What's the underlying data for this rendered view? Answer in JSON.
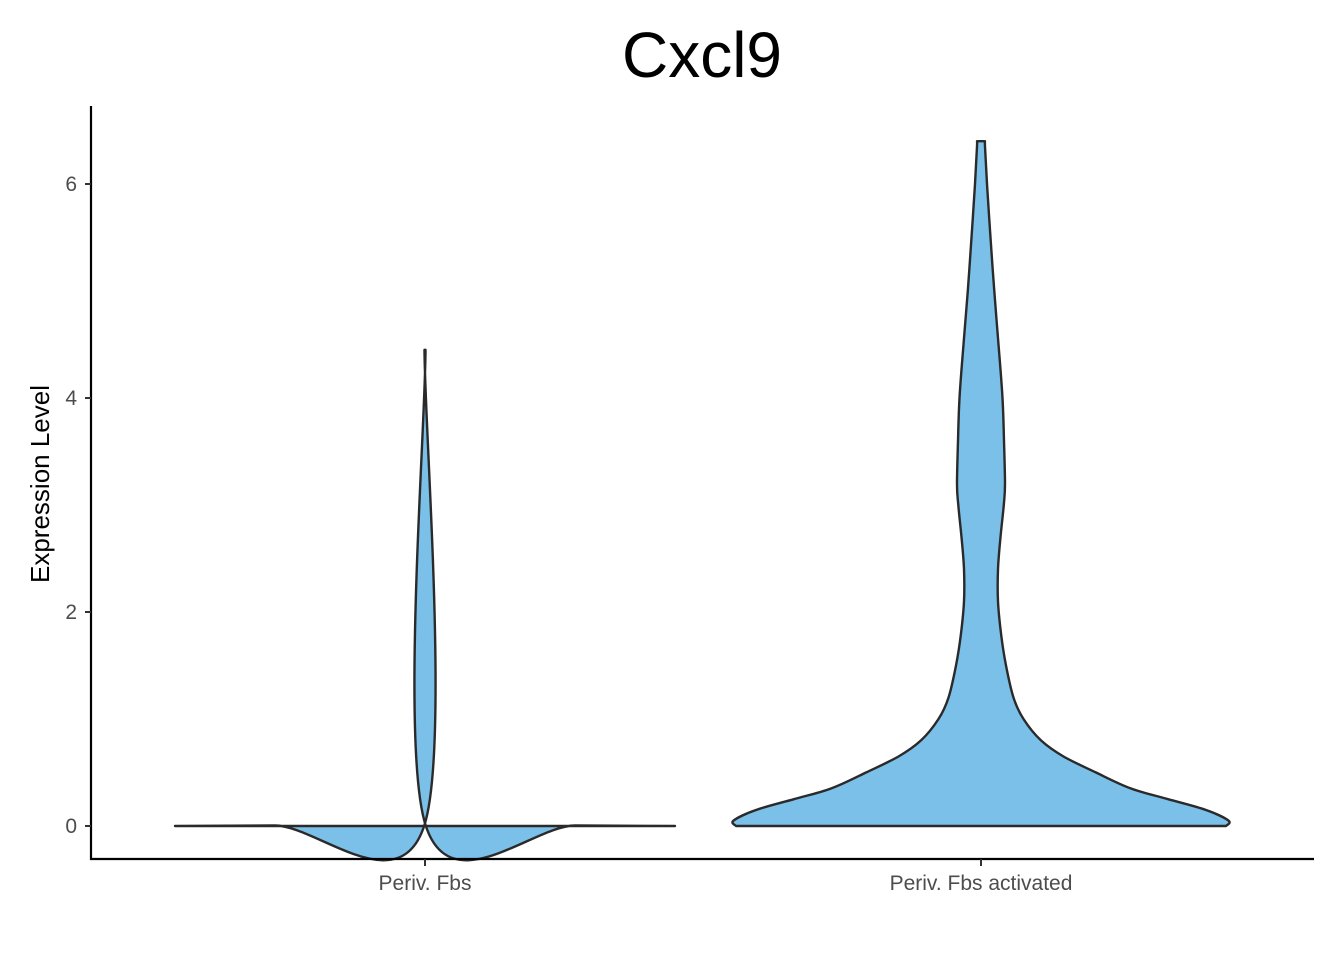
{
  "chart_data": {
    "type": "violin",
    "title": "Cxcl9",
    "xlabel": "",
    "ylabel": "Expression Level",
    "categories": [
      "Periv. Fbs",
      "Periv. Fbs activated"
    ],
    "y_ticks": [
      0,
      2,
      4,
      6
    ],
    "ylim": [
      -0.3,
      6.7
    ],
    "grid": false,
    "legend": "none",
    "fill_colors": [
      "#7AC0E9",
      "#7AC0E9"
    ],
    "outline_color": "#2A2A2A",
    "violins": [
      {
        "category": "Periv. Fbs",
        "min": 0,
        "max": 4.45,
        "profile": [
          [
            0,
            1.0
          ],
          [
            0.005,
            0.6
          ],
          [
            0.01,
            0.002
          ],
          [
            4.45,
            0.002
          ]
        ]
      },
      {
        "category": "Periv. Fbs activated",
        "min": 0,
        "max": 6.4,
        "profile": [
          [
            0,
            0.98
          ],
          [
            0.05,
            0.99
          ],
          [
            0.15,
            0.9
          ],
          [
            0.25,
            0.75
          ],
          [
            0.35,
            0.6
          ],
          [
            0.5,
            0.46
          ],
          [
            0.65,
            0.33
          ],
          [
            0.8,
            0.24
          ],
          [
            1.0,
            0.17
          ],
          [
            1.2,
            0.13
          ],
          [
            1.5,
            0.1
          ],
          [
            1.8,
            0.08
          ],
          [
            2.1,
            0.068
          ],
          [
            2.4,
            0.068
          ],
          [
            2.7,
            0.078
          ],
          [
            3.0,
            0.091
          ],
          [
            3.2,
            0.096
          ],
          [
            3.6,
            0.092
          ],
          [
            4.0,
            0.086
          ],
          [
            4.5,
            0.07
          ],
          [
            5.0,
            0.053
          ],
          [
            5.5,
            0.038
          ],
          [
            6.0,
            0.024
          ],
          [
            6.35,
            0.016
          ],
          [
            6.4,
            0.016
          ]
        ]
      }
    ]
  }
}
